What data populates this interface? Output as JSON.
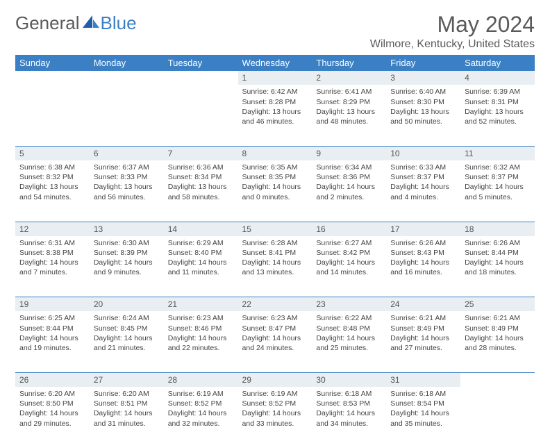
{
  "brand": {
    "part1": "General",
    "part2": "Blue"
  },
  "title": "May 2024",
  "location": "Wilmore, Kentucky, United States",
  "colors": {
    "header_bg": "#3b7fc4",
    "header_text": "#ffffff",
    "daynum_bg": "#e9eef2",
    "border": "#3b7fc4",
    "text": "#444444",
    "brand_gray": "#5a5a5a",
    "brand_blue": "#3b7fc4",
    "page_bg": "#ffffff"
  },
  "weekday_labels": [
    "Sunday",
    "Monday",
    "Tuesday",
    "Wednesday",
    "Thursday",
    "Friday",
    "Saturday"
  ],
  "weeks": [
    {
      "days": [
        null,
        null,
        null,
        {
          "num": "1",
          "sunrise": "Sunrise: 6:42 AM",
          "sunset": "Sunset: 8:28 PM",
          "daylight": "Daylight: 13 hours and 46 minutes."
        },
        {
          "num": "2",
          "sunrise": "Sunrise: 6:41 AM",
          "sunset": "Sunset: 8:29 PM",
          "daylight": "Daylight: 13 hours and 48 minutes."
        },
        {
          "num": "3",
          "sunrise": "Sunrise: 6:40 AM",
          "sunset": "Sunset: 8:30 PM",
          "daylight": "Daylight: 13 hours and 50 minutes."
        },
        {
          "num": "4",
          "sunrise": "Sunrise: 6:39 AM",
          "sunset": "Sunset: 8:31 PM",
          "daylight": "Daylight: 13 hours and 52 minutes."
        }
      ]
    },
    {
      "days": [
        {
          "num": "5",
          "sunrise": "Sunrise: 6:38 AM",
          "sunset": "Sunset: 8:32 PM",
          "daylight": "Daylight: 13 hours and 54 minutes."
        },
        {
          "num": "6",
          "sunrise": "Sunrise: 6:37 AM",
          "sunset": "Sunset: 8:33 PM",
          "daylight": "Daylight: 13 hours and 56 minutes."
        },
        {
          "num": "7",
          "sunrise": "Sunrise: 6:36 AM",
          "sunset": "Sunset: 8:34 PM",
          "daylight": "Daylight: 13 hours and 58 minutes."
        },
        {
          "num": "8",
          "sunrise": "Sunrise: 6:35 AM",
          "sunset": "Sunset: 8:35 PM",
          "daylight": "Daylight: 14 hours and 0 minutes."
        },
        {
          "num": "9",
          "sunrise": "Sunrise: 6:34 AM",
          "sunset": "Sunset: 8:36 PM",
          "daylight": "Daylight: 14 hours and 2 minutes."
        },
        {
          "num": "10",
          "sunrise": "Sunrise: 6:33 AM",
          "sunset": "Sunset: 8:37 PM",
          "daylight": "Daylight: 14 hours and 4 minutes."
        },
        {
          "num": "11",
          "sunrise": "Sunrise: 6:32 AM",
          "sunset": "Sunset: 8:37 PM",
          "daylight": "Daylight: 14 hours and 5 minutes."
        }
      ]
    },
    {
      "days": [
        {
          "num": "12",
          "sunrise": "Sunrise: 6:31 AM",
          "sunset": "Sunset: 8:38 PM",
          "daylight": "Daylight: 14 hours and 7 minutes."
        },
        {
          "num": "13",
          "sunrise": "Sunrise: 6:30 AM",
          "sunset": "Sunset: 8:39 PM",
          "daylight": "Daylight: 14 hours and 9 minutes."
        },
        {
          "num": "14",
          "sunrise": "Sunrise: 6:29 AM",
          "sunset": "Sunset: 8:40 PM",
          "daylight": "Daylight: 14 hours and 11 minutes."
        },
        {
          "num": "15",
          "sunrise": "Sunrise: 6:28 AM",
          "sunset": "Sunset: 8:41 PM",
          "daylight": "Daylight: 14 hours and 13 minutes."
        },
        {
          "num": "16",
          "sunrise": "Sunrise: 6:27 AM",
          "sunset": "Sunset: 8:42 PM",
          "daylight": "Daylight: 14 hours and 14 minutes."
        },
        {
          "num": "17",
          "sunrise": "Sunrise: 6:26 AM",
          "sunset": "Sunset: 8:43 PM",
          "daylight": "Daylight: 14 hours and 16 minutes."
        },
        {
          "num": "18",
          "sunrise": "Sunrise: 6:26 AM",
          "sunset": "Sunset: 8:44 PM",
          "daylight": "Daylight: 14 hours and 18 minutes."
        }
      ]
    },
    {
      "days": [
        {
          "num": "19",
          "sunrise": "Sunrise: 6:25 AM",
          "sunset": "Sunset: 8:44 PM",
          "daylight": "Daylight: 14 hours and 19 minutes."
        },
        {
          "num": "20",
          "sunrise": "Sunrise: 6:24 AM",
          "sunset": "Sunset: 8:45 PM",
          "daylight": "Daylight: 14 hours and 21 minutes."
        },
        {
          "num": "21",
          "sunrise": "Sunrise: 6:23 AM",
          "sunset": "Sunset: 8:46 PM",
          "daylight": "Daylight: 14 hours and 22 minutes."
        },
        {
          "num": "22",
          "sunrise": "Sunrise: 6:23 AM",
          "sunset": "Sunset: 8:47 PM",
          "daylight": "Daylight: 14 hours and 24 minutes."
        },
        {
          "num": "23",
          "sunrise": "Sunrise: 6:22 AM",
          "sunset": "Sunset: 8:48 PM",
          "daylight": "Daylight: 14 hours and 25 minutes."
        },
        {
          "num": "24",
          "sunrise": "Sunrise: 6:21 AM",
          "sunset": "Sunset: 8:49 PM",
          "daylight": "Daylight: 14 hours and 27 minutes."
        },
        {
          "num": "25",
          "sunrise": "Sunrise: 6:21 AM",
          "sunset": "Sunset: 8:49 PM",
          "daylight": "Daylight: 14 hours and 28 minutes."
        }
      ]
    },
    {
      "days": [
        {
          "num": "26",
          "sunrise": "Sunrise: 6:20 AM",
          "sunset": "Sunset: 8:50 PM",
          "daylight": "Daylight: 14 hours and 29 minutes."
        },
        {
          "num": "27",
          "sunrise": "Sunrise: 6:20 AM",
          "sunset": "Sunset: 8:51 PM",
          "daylight": "Daylight: 14 hours and 31 minutes."
        },
        {
          "num": "28",
          "sunrise": "Sunrise: 6:19 AM",
          "sunset": "Sunset: 8:52 PM",
          "daylight": "Daylight: 14 hours and 32 minutes."
        },
        {
          "num": "29",
          "sunrise": "Sunrise: 6:19 AM",
          "sunset": "Sunset: 8:52 PM",
          "daylight": "Daylight: 14 hours and 33 minutes."
        },
        {
          "num": "30",
          "sunrise": "Sunrise: 6:18 AM",
          "sunset": "Sunset: 8:53 PM",
          "daylight": "Daylight: 14 hours and 34 minutes."
        },
        {
          "num": "31",
          "sunrise": "Sunrise: 6:18 AM",
          "sunset": "Sunset: 8:54 PM",
          "daylight": "Daylight: 14 hours and 35 minutes."
        },
        null
      ]
    }
  ]
}
